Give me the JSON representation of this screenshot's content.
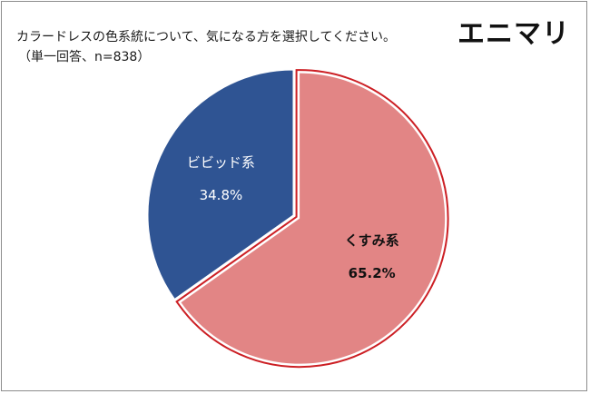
{
  "header": {
    "question": "カラードレスの色系統について、気になる方を選択してください。",
    "sample_note": "（単一回答、n=838）",
    "brand": "エニマリ"
  },
  "chart_data": {
    "type": "pie",
    "title": "カラードレスの色系統について、気になる方を選択してください。",
    "subtitle": "（単一回答、n=838）",
    "slices": [
      {
        "label": "くすみ系",
        "value": 65.2,
        "value_label": "65.2%",
        "color": "#e28585",
        "highlighted": true
      },
      {
        "label": "ビビッド系",
        "value": 34.8,
        "value_label": "34.8%",
        "color": "#2f5493",
        "highlighted": false
      }
    ],
    "start_angle": "12 o'clock",
    "direction": "clockwise",
    "highlight_outline_color": "#cc1f24"
  }
}
